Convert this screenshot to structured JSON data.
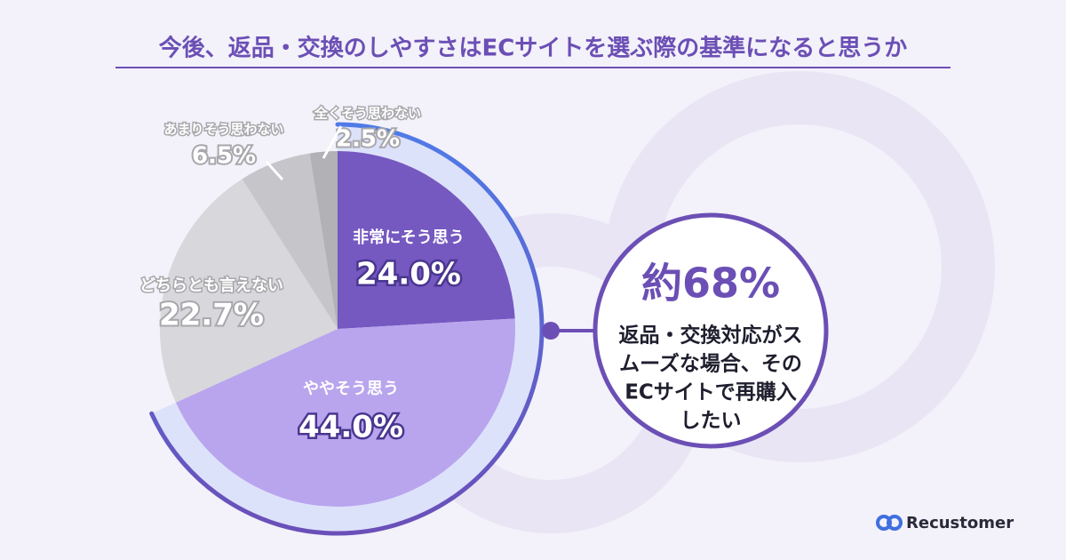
{
  "chart_data": {
    "type": "pie",
    "title": "今後、返品・交換のしやすさはECサイトを選ぶ際の基準になると思うか",
    "categories": [
      "非常にそう思う",
      "ややそう思う",
      "どちらとも言えない",
      "あまりそう思わない",
      "全くそう思わない"
    ],
    "values": [
      24.0,
      44.0,
      22.7,
      6.5,
      2.5
    ],
    "value_labels": [
      "24.0%",
      "44.0%",
      "22.7%",
      "6.5%",
      "2.5%"
    ],
    "colors": [
      "#7558c0",
      "#b8a5ee",
      "#d8d7db",
      "#c6c5c9",
      "#b2b1b5"
    ]
  },
  "callout": {
    "headline": "約68%",
    "lines": [
      "返品・交換対応がス",
      "ムーズな場合、その",
      "ECサイトで再購入",
      "したい"
    ]
  },
  "brand": "Recustomer"
}
